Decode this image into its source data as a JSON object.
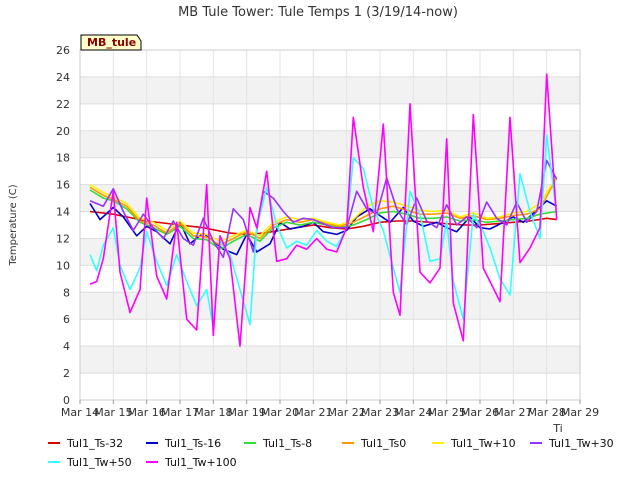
{
  "chart_data": {
    "type": "line",
    "title": "MB Tule Tower: Tule Temps 1 (3/19/14-now)",
    "xlabel": "Ti",
    "ylabel": "Temperature (C)",
    "badge": "MB_tule",
    "ylim": [
      0,
      26
    ],
    "xlim": [
      14,
      29
    ],
    "y_ticks": [
      "0",
      "2",
      "4",
      "6",
      "8",
      "10",
      "12",
      "14",
      "16",
      "18",
      "20",
      "22",
      "24",
      "26"
    ],
    "x_ticks": [
      "Mar 14",
      "Mar 15",
      "Mar 16",
      "Mar 17",
      "Mar 18",
      "Mar 19",
      "Mar 20",
      "Mar 21",
      "Mar 22",
      "Mar 23",
      "Mar 24",
      "Mar 25",
      "Mar 26",
      "Mar 27",
      "Mar 28",
      "Mar 29"
    ],
    "x_tick_values": [
      14,
      15,
      16,
      17,
      18,
      19,
      20,
      21,
      22,
      23,
      24,
      25,
      26,
      27,
      28,
      29
    ],
    "grid": true,
    "legend_position": "bottom",
    "series": [
      {
        "name": "Tul1_Ts-32",
        "color": "#dd0000",
        "x": [
          14.3,
          15,
          16,
          17,
          17.7,
          18.5,
          19,
          19.5,
          20,
          20.5,
          21,
          21.5,
          22,
          22.5,
          23,
          23.5,
          24,
          24.5,
          25,
          25.5,
          26,
          26.5,
          27,
          27.5,
          28,
          28.3
        ],
        "y": [
          14.0,
          13.8,
          13.3,
          13.0,
          12.8,
          12.4,
          12.3,
          12.4,
          12.6,
          12.8,
          13.0,
          12.8,
          12.7,
          12.9,
          13.2,
          13.3,
          13.3,
          13.2,
          13.1,
          13.0,
          13.0,
          13.1,
          13.2,
          13.3,
          13.5,
          13.4
        ]
      },
      {
        "name": "Tul1_Ts-16",
        "color": "#0000cc",
        "x": [
          14.3,
          14.6,
          15,
          15.3,
          15.7,
          16,
          16.3,
          16.7,
          17,
          17.3,
          17.7,
          18,
          18.3,
          18.7,
          19,
          19.3,
          19.7,
          20,
          20.3,
          20.7,
          21,
          21.3,
          21.7,
          22,
          22.3,
          22.7,
          23,
          23.3,
          23.7,
          24,
          24.3,
          24.7,
          25,
          25.3,
          25.7,
          26,
          26.3,
          26.7,
          27,
          27.3,
          27.7,
          28,
          28.3
        ],
        "y": [
          14.6,
          13.4,
          14.3,
          13.6,
          12.2,
          12.9,
          12.5,
          11.6,
          13.2,
          11.6,
          12.4,
          11.8,
          11.2,
          10.8,
          12.3,
          11.0,
          11.6,
          13.2,
          12.7,
          12.9,
          13.2,
          12.5,
          12.3,
          12.6,
          13.6,
          14.2,
          13.7,
          13.2,
          14.3,
          13.3,
          12.9,
          13.2,
          12.8,
          12.5,
          13.6,
          12.8,
          12.7,
          13.2,
          13.6,
          13.2,
          14.1,
          14.8,
          14.4
        ]
      },
      {
        "name": "Tul1_Ts-8",
        "color": "#33dd33",
        "x": [
          14.3,
          14.7,
          15,
          15.4,
          15.8,
          16.2,
          16.6,
          17,
          17.4,
          17.8,
          18.2,
          18.6,
          19,
          19.4,
          19.8,
          20.2,
          20.6,
          21,
          21.4,
          21.8,
          22.2,
          22.6,
          23,
          23.4,
          23.8,
          24.2,
          24.6,
          25,
          25.4,
          25.8,
          26.2,
          26.6,
          27,
          27.4,
          27.8,
          28.3
        ],
        "y": [
          15.6,
          15.0,
          14.8,
          14.2,
          13.2,
          12.8,
          12.3,
          12.9,
          12.0,
          11.9,
          11.2,
          11.8,
          12.3,
          11.8,
          12.8,
          13.2,
          13.0,
          13.2,
          13.0,
          12.8,
          13.0,
          13.4,
          13.9,
          14.0,
          13.8,
          13.5,
          13.5,
          13.6,
          13.3,
          13.4,
          13.2,
          13.3,
          13.4,
          13.5,
          13.8,
          14.0
        ]
      },
      {
        "name": "Tul1_Ts0",
        "color": "#ff9900",
        "x": [
          14.3,
          14.7,
          15,
          15.4,
          15.8,
          16.2,
          16.6,
          17,
          17.4,
          17.8,
          18.2,
          18.6,
          19,
          19.4,
          19.8,
          20.2,
          20.6,
          21,
          21.4,
          21.8,
          22.2,
          22.6,
          23,
          23.4,
          23.8,
          24.2,
          24.6,
          25,
          25.4,
          25.8,
          26.2,
          26.6,
          27,
          27.4,
          27.8,
          28.3
        ],
        "y": [
          15.8,
          15.2,
          14.9,
          14.4,
          13.3,
          13.0,
          12.4,
          13.1,
          12.2,
          12.1,
          11.5,
          12.0,
          12.5,
          12.0,
          13.0,
          13.4,
          13.2,
          13.4,
          13.1,
          12.9,
          13.2,
          13.7,
          14.2,
          14.4,
          14.1,
          13.8,
          13.8,
          13.9,
          13.5,
          13.7,
          13.4,
          13.5,
          13.7,
          13.8,
          14.2,
          16.5
        ]
      },
      {
        "name": "Tul1_Tw+10",
        "color": "#ffee00",
        "x": [
          14.3,
          14.7,
          15,
          15.4,
          15.8,
          16.2,
          16.6,
          17,
          17.4,
          17.8,
          18.2,
          18.6,
          19,
          19.4,
          19.8,
          20.2,
          20.6,
          21,
          21.4,
          21.8,
          22.2,
          22.6,
          23,
          23.4,
          23.8,
          24.2,
          24.6,
          25,
          25.4,
          25.8,
          26.2,
          26.6,
          27,
          27.4,
          27.8,
          28.3
        ],
        "y": [
          16.0,
          15.4,
          15.1,
          14.6,
          13.5,
          13.2,
          12.6,
          13.3,
          12.4,
          12.3,
          11.8,
          12.2,
          12.6,
          12.2,
          13.2,
          13.6,
          13.4,
          13.5,
          13.2,
          13.0,
          13.4,
          14.4,
          14.8,
          14.7,
          14.4,
          14.1,
          14.0,
          14.1,
          13.6,
          13.9,
          13.5,
          13.6,
          13.9,
          14.0,
          14.6,
          16.6
        ]
      },
      {
        "name": "Tul1_Tw+30",
        "color": "#9933ff",
        "x": [
          14.3,
          14.7,
          15,
          15.3,
          15.6,
          15.9,
          16.2,
          16.5,
          16.8,
          17.1,
          17.4,
          17.7,
          18,
          18.3,
          18.6,
          18.9,
          19.2,
          19.5,
          19.8,
          20.1,
          20.4,
          20.7,
          21,
          21.3,
          21.6,
          22,
          22.3,
          22.6,
          22.9,
          23.2,
          23.5,
          23.8,
          24.1,
          24.4,
          24.7,
          25,
          25.3,
          25.6,
          25.9,
          26.2,
          26.5,
          26.8,
          27.1,
          27.4,
          27.7,
          28,
          28.3
        ],
        "y": [
          14.8,
          14.4,
          15.7,
          14.0,
          12.6,
          13.8,
          12.8,
          12.0,
          13.3,
          12.0,
          11.5,
          13.5,
          11.8,
          10.6,
          14.2,
          13.4,
          11.0,
          15.5,
          15.0,
          14.0,
          13.2,
          13.5,
          13.4,
          13.1,
          12.8,
          12.8,
          15.5,
          14.2,
          13.8,
          16.5,
          14.2,
          13.0,
          15.0,
          13.3,
          12.8,
          14.5,
          13.0,
          13.6,
          12.8,
          14.7,
          13.5,
          13.0,
          14.7,
          13.2,
          14.0,
          17.8,
          16.4
        ]
      },
      {
        "name": "Tul1_Tw+50",
        "color": "#33ffff",
        "x": [
          14.3,
          14.5,
          14.7,
          15,
          15.2,
          15.5,
          15.8,
          16,
          16.3,
          16.6,
          16.9,
          17.2,
          17.5,
          17.8,
          18,
          18.2,
          18.5,
          18.8,
          19.1,
          19.3,
          19.6,
          19.9,
          20.2,
          20.5,
          20.8,
          21.1,
          21.4,
          21.7,
          22,
          22.2,
          22.5,
          22.8,
          23.1,
          23.4,
          23.6,
          23.9,
          24.2,
          24.5,
          24.8,
          25,
          25.2,
          25.5,
          25.8,
          26.1,
          26.3,
          26.6,
          26.9,
          27.2,
          27.5,
          27.8,
          28,
          28.3
        ],
        "y": [
          10.8,
          9.6,
          11.5,
          12.8,
          10.0,
          8.2,
          9.8,
          12.5,
          10.3,
          8.5,
          10.8,
          8.8,
          7.0,
          8.2,
          5.4,
          11.8,
          10.8,
          8.2,
          5.6,
          12.8,
          15.8,
          13.0,
          11.3,
          11.8,
          11.5,
          12.6,
          11.8,
          11.4,
          12.8,
          18.0,
          17.2,
          14.2,
          12.6,
          9.8,
          8.0,
          15.5,
          13.8,
          10.3,
          10.5,
          13.3,
          8.8,
          6.0,
          13.8,
          12.5,
          11.3,
          9.0,
          7.8,
          16.8,
          14.0,
          12.0,
          19.7,
          13.8
        ]
      },
      {
        "name": "Tul1_Tw+100",
        "color": "#ff00ff",
        "x": [
          14.3,
          14.5,
          14.7,
          15,
          15.2,
          15.5,
          15.8,
          16,
          16.3,
          16.6,
          16.9,
          17.2,
          17.5,
          17.8,
          18,
          18.2,
          18.5,
          18.8,
          19.1,
          19.3,
          19.6,
          19.9,
          20.2,
          20.5,
          20.8,
          21.1,
          21.4,
          21.7,
          22,
          22.2,
          22.5,
          22.8,
          23.1,
          23.4,
          23.6,
          23.9,
          24.2,
          24.5,
          24.8,
          25,
          25.2,
          25.5,
          25.8,
          26.1,
          26.3,
          26.6,
          26.9,
          27.2,
          27.5,
          27.8,
          28,
          28.3
        ],
        "y": [
          8.6,
          8.8,
          10.5,
          15.5,
          9.5,
          6.5,
          8.2,
          15.0,
          9.2,
          7.5,
          13.2,
          6.0,
          5.2,
          16.0,
          4.8,
          12.2,
          10.5,
          4.0,
          14.3,
          12.8,
          17.0,
          10.3,
          10.5,
          11.5,
          11.2,
          12.0,
          11.2,
          11.0,
          12.8,
          21.0,
          15.8,
          12.5,
          20.5,
          8.0,
          6.3,
          22.0,
          9.5,
          8.7,
          9.8,
          19.4,
          7.2,
          4.4,
          21.2,
          9.8,
          8.8,
          7.3,
          21.0,
          10.2,
          11.3,
          12.8,
          24.2,
          13.4
        ]
      }
    ]
  }
}
